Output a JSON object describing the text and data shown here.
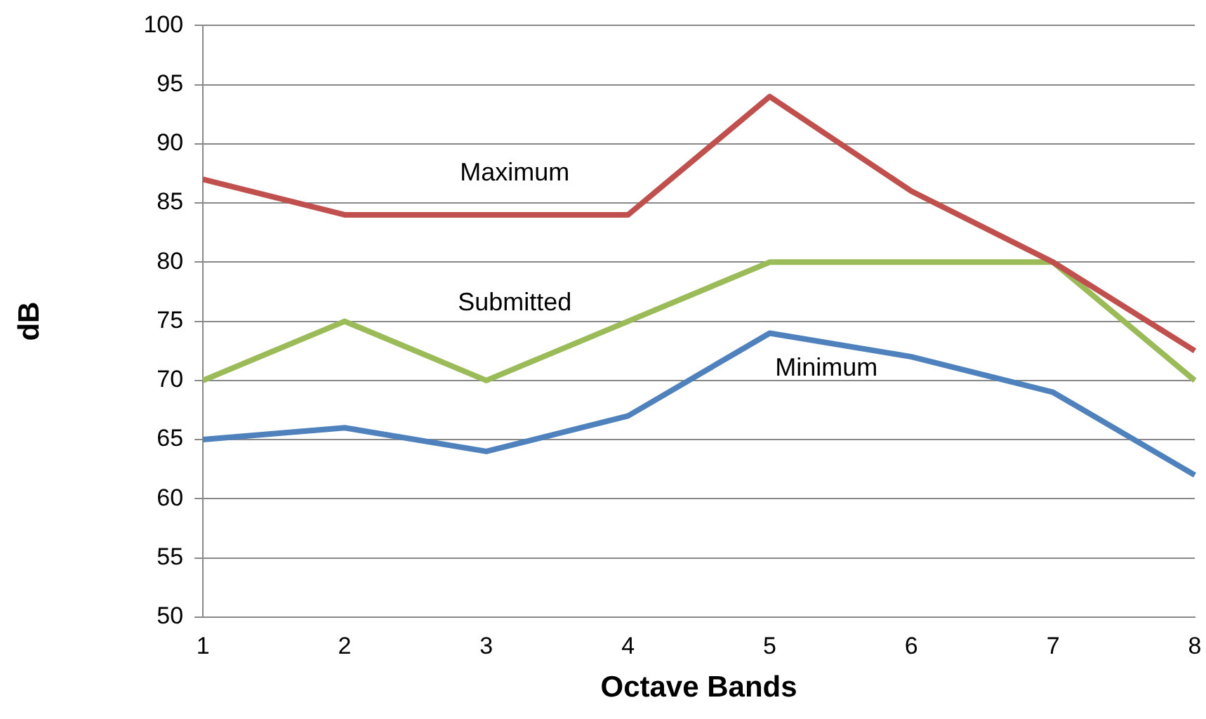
{
  "chart_data": {
    "type": "line",
    "xlabel": "Octave Bands",
    "ylabel": "dB",
    "categories": [
      "1",
      "2",
      "3",
      "4",
      "5",
      "6",
      "7",
      "8"
    ],
    "ylim": [
      50,
      100
    ],
    "yticks": [
      50,
      55,
      60,
      65,
      70,
      75,
      80,
      85,
      90,
      95,
      100
    ],
    "grid": "y",
    "legend": false,
    "marker": "none",
    "line_style": "solid",
    "series": [
      {
        "name": "Maximum",
        "color": "#c0504d",
        "values": [
          87,
          84,
          84,
          84,
          94,
          86,
          80,
          72.5
        ]
      },
      {
        "name": "Submitted",
        "color": "#9bbb59",
        "values": [
          70,
          75,
          70,
          75,
          80,
          80,
          80,
          70
        ]
      },
      {
        "name": "Minimum",
        "color": "#4f81bd",
        "values": [
          65,
          66,
          64,
          67,
          74,
          72,
          69,
          62
        ]
      }
    ]
  }
}
